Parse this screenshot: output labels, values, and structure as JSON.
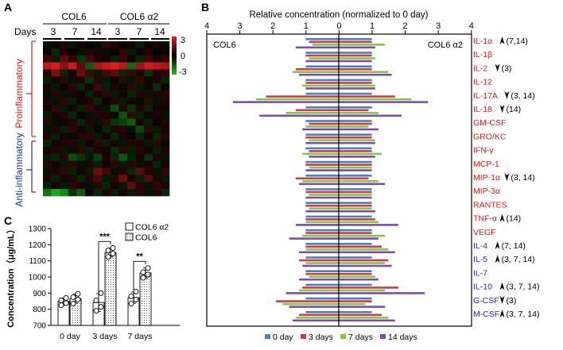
{
  "panels": {
    "a": "A",
    "b": "B",
    "c": "C"
  },
  "colors": {
    "heat_high": "#e02020",
    "heat_mid": "#000000",
    "heat_low": "#20c020",
    "pro_label": "#d42020",
    "anti_label": "#2030b0",
    "series": [
      "#4a7fc0",
      "#c84040",
      "#8cc050",
      "#7a4fa8"
    ]
  },
  "heatmap": {
    "group_labels": [
      "COL6",
      "COL6 α2"
    ],
    "days_label": "Days",
    "day_labels": [
      "3",
      "7",
      "14",
      "3",
      "7",
      "14"
    ],
    "row_group_labels": [
      "Proinflammatory",
      "Anti-inflammatory"
    ],
    "scale_labels": [
      "3",
      "0",
      "-3"
    ],
    "rows": 22,
    "cols": 15,
    "values": [
      [
        -0.3,
        0.2,
        0.5,
        -0.4,
        0.3,
        0.1,
        -0.2,
        0.6,
        0.4,
        -0.1,
        0.3,
        -0.5,
        0.2,
        0.4,
        -0.2
      ],
      [
        0.2,
        -0.6,
        0.4,
        0.1,
        -0.3,
        0.5,
        0.3,
        -0.2,
        0.1,
        0.6,
        -0.4,
        0.2,
        0.5,
        -0.1,
        0.3
      ],
      [
        0.8,
        -0.4,
        1.2,
        0.6,
        -0.8,
        0.9,
        0.4,
        0.3,
        -0.5,
        0.7,
        0.2,
        -0.6,
        0.8,
        0.4,
        0.6
      ],
      [
        2.4,
        2.8,
        1.8,
        2.6,
        1.2,
        -1.4,
        2.2,
        2.6,
        2.9,
        2.4,
        -1.6,
        2.1,
        2.7,
        2.5,
        2.2
      ],
      [
        0.4,
        1.6,
        -0.6,
        0.3,
        1.4,
        0.8,
        -0.4,
        0.9,
        1.2,
        -0.6,
        0.7,
        0.4,
        -0.8,
        0.5,
        0.6
      ],
      [
        -0.5,
        0.3,
        0.6,
        -0.3,
        0.4,
        -0.8,
        0.5,
        -0.4,
        0.2,
        0.6,
        -0.3,
        0.7,
        -0.2,
        0.4,
        -0.6
      ],
      [
        0.3,
        -0.4,
        0.2,
        0.5,
        -0.6,
        0.3,
        0.8,
        -0.5,
        0.4,
        -0.2,
        0.6,
        -0.4,
        0.3,
        -0.7,
        0.2
      ],
      [
        -0.2,
        0.5,
        -0.3,
        0.4,
        0.2,
        -0.5,
        0.3,
        0.6,
        -0.4,
        0.3,
        -0.6,
        0.5,
        -0.3,
        0.4,
        0.5
      ],
      [
        0.4,
        -0.3,
        0.6,
        -0.5,
        0.3,
        0.4,
        -0.6,
        0.2,
        0.5,
        -0.4,
        0.3,
        -0.2,
        0.6,
        -0.3,
        0.4
      ],
      [
        0.2,
        0.6,
        -0.4,
        0.3,
        -0.5,
        0.7,
        0.4,
        -0.3,
        -1.2,
        0.5,
        -0.8,
        0.4,
        -0.6,
        0.3,
        0.2
      ],
      [
        -0.4,
        0.3,
        0.5,
        -0.6,
        0.2,
        -0.3,
        0.5,
        0.4,
        -0.2,
        -1.3,
        0.6,
        -0.5,
        0.3,
        0.4,
        -0.3
      ],
      [
        0.5,
        -0.2,
        0.3,
        0.4,
        -0.6,
        0.5,
        -0.3,
        0.6,
        -0.8,
        -1.0,
        -1.4,
        0.3,
        -0.5,
        0.2,
        0.4
      ],
      [
        -0.3,
        0.4,
        -0.5,
        0.6,
        0.3,
        -0.4,
        0.2,
        -0.6,
        0.4,
        0.5,
        -0.3,
        -1.1,
        0.6,
        -0.4,
        0.3
      ],
      [
        0.4,
        -0.5,
        0.3,
        -0.2,
        0.5,
        0.6,
        -0.4,
        0.3,
        -0.6,
        0.4,
        0.2,
        -0.5,
        0.3,
        -0.6,
        0.5
      ],
      [
        -0.6,
        0.3,
        0.4,
        0.5,
        -0.4,
        0.2,
        0.6,
        -0.5,
        0.3,
        -0.3,
        0.5,
        0.4,
        -0.4,
        0.6,
        -0.2
      ],
      [
        0.3,
        0.5,
        -0.4,
        -0.3,
        0.6,
        -0.5,
        0.4,
        0.3,
        -0.7,
        0.6,
        -0.4,
        0.5,
        0.3,
        -0.5,
        0.4
      ],
      [
        -0.4,
        -0.6,
        0.5,
        -1.2,
        -0.8,
        -0.4,
        -1.0,
        0.4,
        -0.6,
        -1.3,
        -0.5,
        0.3,
        -0.8,
        0.4,
        -0.3
      ],
      [
        0.5,
        0.3,
        -0.4,
        0.6,
        -0.3,
        0.4,
        -0.5,
        0.3,
        0.6,
        -0.4,
        0.5,
        -0.3,
        0.4,
        -0.6,
        0.3
      ],
      [
        -0.3,
        0.4,
        0.6,
        -0.5,
        0.3,
        -0.4,
        1.4,
        0.8,
        -0.3,
        0.5,
        -0.6,
        1.2,
        0.4,
        -0.3,
        0.6
      ],
      [
        0.4,
        -0.5,
        0.3,
        0.4,
        -0.6,
        0.5,
        1.0,
        -0.4,
        0.6,
        1.4,
        0.3,
        -0.5,
        1.1,
        0.4,
        -0.4
      ],
      [
        -0.5,
        0.3,
        -0.4,
        0.6,
        0.4,
        -0.3,
        0.5,
        -0.6,
        0.3,
        -0.4,
        1.2,
        0.5,
        -0.3,
        0.6,
        0.4
      ],
      [
        -1.8,
        -2.6,
        -2.2,
        -0.8,
        -1.4,
        0.3,
        -0.6,
        0.4,
        -0.5,
        0.3,
        -0.4,
        0.5,
        -0.3,
        0.4,
        -0.6
      ]
    ]
  },
  "chart_data": [
    {
      "type": "bar",
      "orientation": "horizontal",
      "title": "Relative concentration (normalized to 0 day)",
      "left_side_label": "COL6",
      "right_side_label": "COL6 α2",
      "axis_ticks": [
        "4",
        "3",
        "2",
        "1",
        "0",
        "1",
        "2",
        "3",
        "4"
      ],
      "xlim": [
        0,
        4
      ],
      "categories": [
        "IL-1α",
        "IL-1β",
        "IL-2",
        "IL-12",
        "IL-17A",
        "IL-18",
        "GM-CSF",
        "GRO/KC",
        "IFN-γ",
        "MCP-1",
        "MIP-1α",
        "MIP-3α",
        "RANTES",
        "TNF-α",
        "VEGF",
        "IL-4",
        "IL-5",
        "IL-7",
        "IL-10",
        "G-CSF",
        "M-CSF"
      ],
      "category_group": [
        "pro",
        "pro",
        "pro",
        "pro",
        "pro",
        "pro",
        "pro",
        "pro",
        "pro",
        "pro",
        "pro",
        "pro",
        "pro",
        "pro",
        "pro",
        "anti",
        "anti",
        "anti",
        "anti",
        "anti",
        "anti"
      ],
      "annotations": [
        {
          "arrow": "up",
          "text": "(7,14)"
        },
        {
          "arrow": "",
          "text": ""
        },
        {
          "arrow": "down",
          "text": "(3)"
        },
        {
          "arrow": "",
          "text": ""
        },
        {
          "arrow": "down",
          "text": "(3, 14)"
        },
        {
          "arrow": "down",
          "text": "(14)"
        },
        {
          "arrow": "",
          "text": ""
        },
        {
          "arrow": "",
          "text": ""
        },
        {
          "arrow": "",
          "text": ""
        },
        {
          "arrow": "",
          "text": ""
        },
        {
          "arrow": "down",
          "text": "(3, 14)"
        },
        {
          "arrow": "",
          "text": ""
        },
        {
          "arrow": "",
          "text": ""
        },
        {
          "arrow": "up",
          "text": "(14)"
        },
        {
          "arrow": "",
          "text": ""
        },
        {
          "arrow": "up",
          "text": "(7, 14)"
        },
        {
          "arrow": "up",
          "text": "(3, 7, 14)"
        },
        {
          "arrow": "",
          "text": ""
        },
        {
          "arrow": "up",
          "text": "(3, 7, 14)"
        },
        {
          "arrow": "down",
          "text": "(3)"
        },
        {
          "arrow": "up",
          "text": "(3, 7, 14)"
        }
      ],
      "series": [
        {
          "name": "0 day",
          "left": [
            1,
            1,
            1,
            1,
            1,
            1,
            1,
            1,
            1,
            1,
            1,
            1,
            1,
            1,
            1,
            1,
            1,
            1,
            1,
            1,
            1
          ],
          "right": [
            1,
            1,
            1,
            1,
            1,
            1,
            1,
            1,
            1,
            1,
            1,
            1,
            1,
            1,
            1,
            1,
            1,
            1,
            1,
            1,
            1
          ]
        },
        {
          "name": "3 days",
          "left": [
            0.9,
            1.0,
            1.3,
            1.0,
            2.2,
            1.3,
            0.9,
            1.0,
            0.9,
            1.0,
            1.3,
            1.0,
            1.0,
            1.0,
            1.0,
            1.0,
            1.2,
            1.0,
            1.1,
            1.9,
            1.2
          ]
        },
        {
          "name": "7 days",
          "left": [
            0.8,
            0.9,
            1.4,
            1.1,
            2.5,
            1.6,
            1.0,
            0.9,
            1.1,
            0.9,
            1.1,
            0.9,
            0.9,
            1.0,
            1.1,
            1.0,
            1.0,
            0.9,
            1.2,
            1.7,
            1.3
          ]
        },
        {
          "name": "14 days",
          "left": [
            1.3,
            1.0,
            1.2,
            1.0,
            3.2,
            2.4,
            1.1,
            1.0,
            0.9,
            1.0,
            1.2,
            1.0,
            1.0,
            1.3,
            1.5,
            1.2,
            1.1,
            1.2,
            1.6,
            1.5,
            1.4
          ]
        }
      ],
      "right_series": [
        {
          "name": "0 day",
          "values": [
            1,
            1,
            1,
            1,
            1,
            1,
            1,
            1,
            1,
            1,
            1,
            1,
            1,
            1,
            1,
            1,
            1,
            1,
            1,
            1,
            1
          ]
        },
        {
          "name": "3 days",
          "values": [
            1.0,
            1.0,
            1.0,
            1.0,
            1.7,
            0.9,
            1.0,
            1.0,
            1.0,
            1.0,
            0.9,
            1.0,
            1.0,
            1.1,
            1.0,
            1.3,
            1.5,
            1.0,
            1.8,
            1.0,
            1.3
          ]
        },
        {
          "name": "7 days",
          "values": [
            1.4,
            1.1,
            1.5,
            1.1,
            2.2,
            1.2,
            0.9,
            1.1,
            1.3,
            1.0,
            1.2,
            1.0,
            1.0,
            1.2,
            1.4,
            1.5,
            1.4,
            1.1,
            1.4,
            0.8,
            1.5
          ]
        },
        {
          "name": "14 days",
          "values": [
            1.1,
            1.0,
            1.6,
            1.1,
            2.7,
            1.9,
            1.2,
            1.1,
            1.1,
            1.0,
            1.4,
            1.0,
            1.1,
            1.8,
            1.2,
            1.7,
            1.6,
            1.2,
            2.6,
            1.4,
            1.7
          ]
        }
      ],
      "legend": [
        "0 day",
        "3 days",
        "7 days",
        "14 days"
      ],
      "legend_position": "bottom"
    },
    {
      "type": "bar",
      "title": "",
      "xlabel": "",
      "ylabel": "Concentration（μg/mL）",
      "ylim": [
        700,
        1300
      ],
      "yticks": [
        "700",
        "800",
        "900",
        "1000",
        "1100",
        "1200",
        "1300"
      ],
      "categories": [
        "0 day",
        "3 days",
        "7 days"
      ],
      "series": [
        {
          "name": "COL6 α2",
          "values": [
            848,
            842,
            872
          ],
          "errors": [
            22,
            55,
            35
          ],
          "points": [
            [
              825,
              838,
              855,
              870
            ],
            [
              790,
              815,
              855,
              900
            ],
            [
              835,
              860,
              880,
              910
            ]
          ]
        },
        {
          "name": "COL6",
          "values": [
            866,
            1152,
            1025
          ],
          "errors": [
            28,
            28,
            32
          ],
          "points": [
            [
              835,
              860,
              875,
              895
            ],
            [
              1125,
              1145,
              1165,
              1180
            ],
            [
              995,
              1015,
              1030,
              1055
            ]
          ]
        }
      ],
      "significance": [
        "",
        "***",
        "**"
      ],
      "legend_position": "top-right"
    }
  ]
}
